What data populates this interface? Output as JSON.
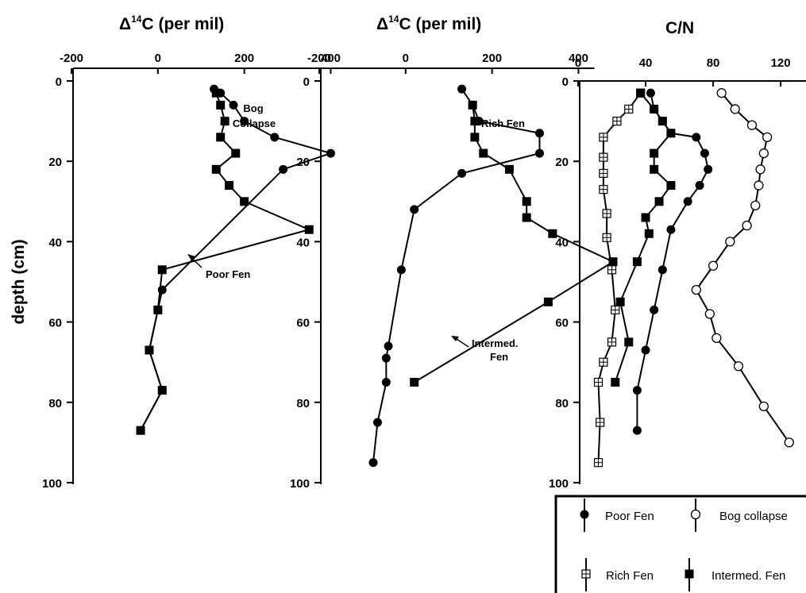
{
  "chart_data": [
    {
      "type": "line",
      "title_main": "Δ",
      "title_sup": "14",
      "title_rest": "C (per mil)",
      "xlim": [
        -200,
        480
      ],
      "ylim": [
        0,
        100
      ],
      "x_ticks": [
        -200,
        0,
        200,
        400
      ],
      "y_ticks": [
        0,
        20,
        40,
        60,
        80,
        100
      ],
      "ylabel": "depth (cm)",
      "series": [
        {
          "marker": "circle",
          "points": [
            [
              130,
              2
            ],
            [
              145,
              3
            ],
            [
              175,
              6
            ],
            [
              200,
              10
            ],
            [
              270,
              14
            ],
            [
              400,
              18
            ],
            [
              290,
              22
            ],
            [
              10,
              52
            ],
            [
              0,
              57
            ],
            [
              -20,
              67
            ],
            [
              10,
              77
            ],
            [
              -40,
              87
            ]
          ]
        },
        {
          "marker": "square",
          "points": [
            [
              135,
              3
            ],
            [
              145,
              6
            ],
            [
              155,
              10
            ],
            [
              145,
              14
            ],
            [
              180,
              18
            ],
            [
              135,
              22
            ],
            [
              165,
              26
            ],
            [
              200,
              30
            ],
            [
              350,
              37
            ],
            [
              10,
              47
            ],
            [
              0,
              57
            ],
            [
              -20,
              67
            ],
            [
              10,
              77
            ],
            [
              -40,
              87
            ]
          ]
        }
      ],
      "annotations": [
        {
          "text": "Bog",
          "x": 0,
          "y": 0
        },
        {
          "text": "Collapse",
          "x": 0,
          "y": 0
        },
        {
          "text": "Poor Fen",
          "x": 0,
          "y": 0
        }
      ]
    },
    {
      "type": "line",
      "title_main": "Δ",
      "title_sup": "14",
      "title_rest": "C (per mil)",
      "xlim": [
        -200,
        480
      ],
      "ylim": [
        0,
        100
      ],
      "x_ticks": [
        -200,
        0,
        200,
        400
      ],
      "y_ticks": [
        0,
        20,
        40,
        60,
        80,
        100
      ],
      "series": [
        {
          "marker": "circle",
          "points": [
            [
              130,
              2
            ],
            [
              155,
              6
            ],
            [
              170,
              10
            ],
            [
              310,
              13
            ],
            [
              310,
              18
            ],
            [
              130,
              23
            ],
            [
              20,
              32
            ],
            [
              -10,
              47
            ],
            [
              -40,
              66
            ],
            [
              -45,
              69
            ],
            [
              -45,
              75
            ],
            [
              -65,
              85
            ],
            [
              -75,
              95
            ]
          ]
        },
        {
          "marker": "square",
          "points": [
            [
              155,
              6
            ],
            [
              160,
              10
            ],
            [
              160,
              14
            ],
            [
              180,
              18
            ],
            [
              240,
              22
            ],
            [
              280,
              30
            ],
            [
              280,
              34
            ],
            [
              340,
              38
            ],
            [
              480,
              45
            ],
            [
              330,
              55
            ],
            [
              20,
              75
            ]
          ]
        }
      ],
      "annotations": [
        {
          "text": "Rich Fen"
        },
        {
          "text": "Intermed."
        },
        {
          "text": "Fen"
        }
      ]
    },
    {
      "type": "line",
      "title": "C/N",
      "xlim": [
        0,
        135
      ],
      "ylim": [
        0,
        100
      ],
      "x_ticks": [
        0,
        40,
        80,
        120
      ],
      "y_ticks": [
        0,
        20,
        40,
        60,
        80,
        100
      ],
      "series": [
        {
          "name": "Poor Fen",
          "marker": "circle",
          "points": [
            [
              43,
              3
            ],
            [
              45,
              7
            ],
            [
              50,
              10
            ],
            [
              55,
              13
            ],
            [
              70,
              14
            ],
            [
              75,
              18
            ],
            [
              77,
              22
            ],
            [
              72,
              26
            ],
            [
              65,
              30
            ],
            [
              55,
              37
            ],
            [
              50,
              47
            ],
            [
              45,
              57
            ],
            [
              40,
              67
            ],
            [
              35,
              77
            ],
            [
              35,
              87
            ]
          ]
        },
        {
          "name": "Bog collapse",
          "marker": "open-circle",
          "points": [
            [
              85,
              3
            ],
            [
              93,
              7
            ],
            [
              103,
              11
            ],
            [
              112,
              14
            ],
            [
              110,
              18
            ],
            [
              108,
              22
            ],
            [
              107,
              26
            ],
            [
              105,
              31
            ],
            [
              100,
              36
            ],
            [
              90,
              40
            ],
            [
              80,
              46
            ],
            [
              70,
              52
            ],
            [
              78,
              58
            ],
            [
              82,
              64
            ],
            [
              95,
              71
            ],
            [
              110,
              81
            ],
            [
              125,
              90
            ]
          ]
        },
        {
          "name": "Rich Fen",
          "marker": "boxplus",
          "points": [
            [
              37,
              3
            ],
            [
              30,
              7
            ],
            [
              23,
              10
            ],
            [
              15,
              14
            ],
            [
              15,
              19
            ],
            [
              15,
              23
            ],
            [
              15,
              27
            ],
            [
              17,
              33
            ],
            [
              17,
              39
            ],
            [
              20,
              47
            ],
            [
              22,
              57
            ],
            [
              20,
              65
            ],
            [
              15,
              70
            ],
            [
              12,
              75
            ],
            [
              13,
              85
            ],
            [
              12,
              95
            ]
          ]
        },
        {
          "name": "Intermed. Fen",
          "marker": "square",
          "points": [
            [
              37,
              3
            ],
            [
              45,
              7
            ],
            [
              50,
              10
            ],
            [
              55,
              13
            ],
            [
              45,
              18
            ],
            [
              45,
              22
            ],
            [
              55,
              26
            ],
            [
              48,
              30
            ],
            [
              40,
              34
            ],
            [
              42,
              38
            ],
            [
              35,
              45
            ],
            [
              25,
              55
            ],
            [
              30,
              65
            ],
            [
              22,
              75
            ]
          ]
        }
      ],
      "legend": {
        "position": "bottom"
      }
    }
  ],
  "legend_labels": {
    "poor_fen": "Poor Fen",
    "bog_collapse": "Bog collapse",
    "rich_fen": "Rich Fen",
    "intermed_fen": "Intermed. Fen"
  }
}
